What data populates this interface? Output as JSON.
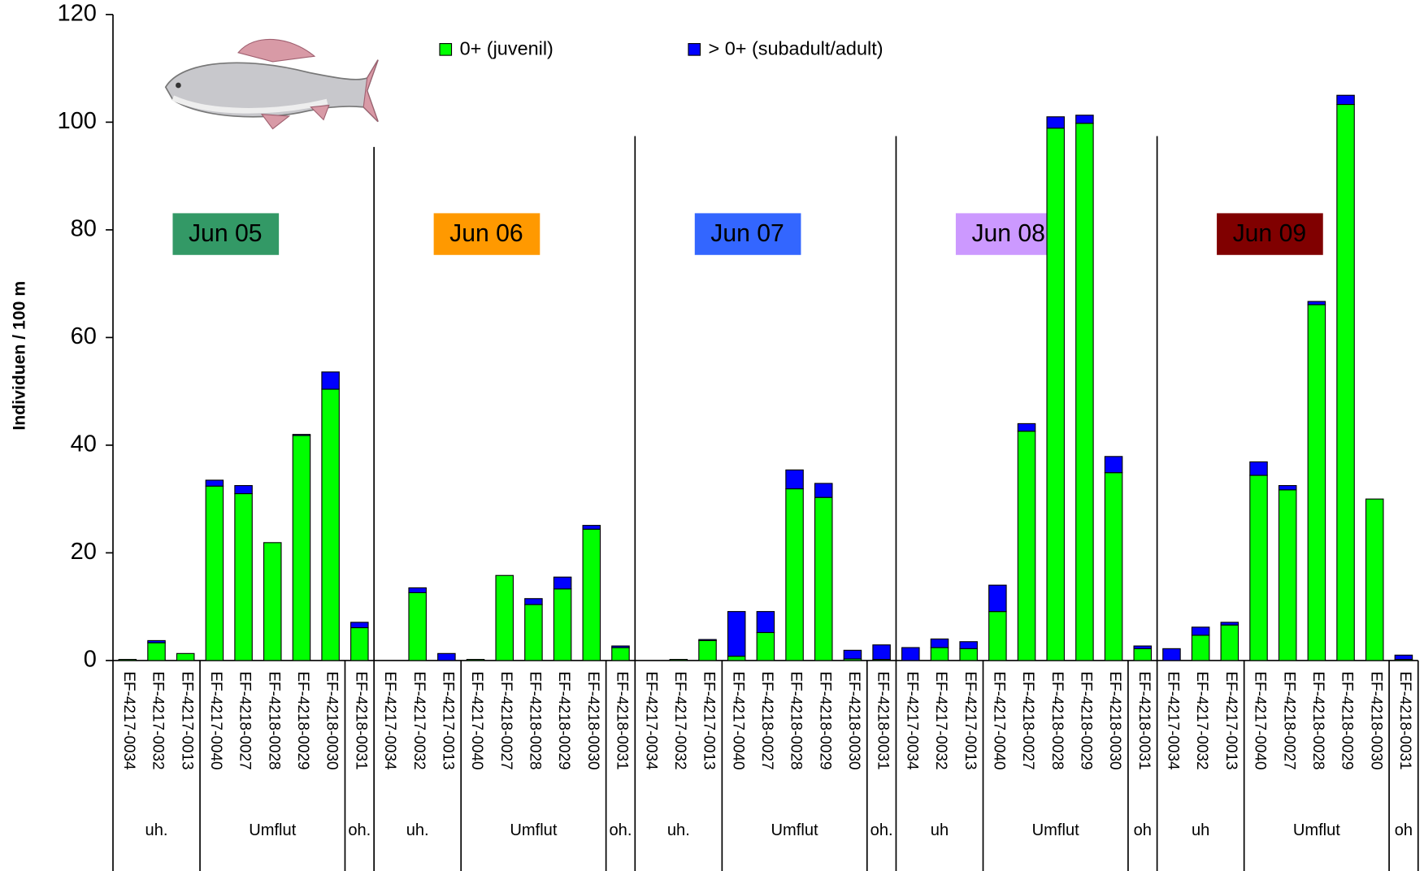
{
  "chart_data": {
    "type": "stacked-bar",
    "y_label": "Individuen / 100 m",
    "ylim": [
      0,
      120
    ],
    "yticks": [
      0,
      20,
      40,
      60,
      80,
      100,
      120
    ],
    "legend_position": "top",
    "panels": [
      {
        "label": "Jun 05",
        "color": "#339966",
        "groups": [
          {
            "label": "uh.",
            "categories": [
              "EF-4217-0034",
              "EF-4217-0032",
              "EF-4217-0013"
            ]
          },
          {
            "label": "Umflut",
            "categories": [
              "EF-4217-0040",
              "EF-4218-0027",
              "EF-4218-0028",
              "EF-4218-0029",
              "EF-4218-0030"
            ]
          },
          {
            "label": "oh.",
            "categories": [
              "EF-4218-0031"
            ]
          }
        ]
      },
      {
        "label": "Jun 06",
        "color": "#ff9900",
        "groups": [
          {
            "label": "uh.",
            "categories": [
              "EF-4217-0034",
              "EF-4217-0032",
              "EF-4217-0013"
            ]
          },
          {
            "label": "Umflut",
            "categories": [
              "EF-4217-0040",
              "EF-4218-0027",
              "EF-4218-0028",
              "EF-4218-0029",
              "EF-4218-0030"
            ]
          },
          {
            "label": "oh.",
            "categories": [
              "EF-4218-0031"
            ]
          }
        ]
      },
      {
        "label": "Jun 07",
        "color": "#3366ff",
        "groups": [
          {
            "label": "uh.",
            "categories": [
              "EF-4217-0034",
              "EF-4217-0032",
              "EF-4217-0013"
            ]
          },
          {
            "label": "Umflut",
            "categories": [
              "EF-4217-0040",
              "EF-4218-0027",
              "EF-4218-0028",
              "EF-4218-0029",
              "EF-4218-0030"
            ]
          },
          {
            "label": "oh.",
            "categories": [
              "EF-4218-0031"
            ]
          }
        ]
      },
      {
        "label": "Jun 08",
        "color": "#cc99ff",
        "groups": [
          {
            "label": "uh",
            "categories": [
              "EF-4217-0034",
              "EF-4217-0032",
              "EF-4217-0013"
            ]
          },
          {
            "label": "Umflut",
            "categories": [
              "EF-4217-0040",
              "EF-4218-0027",
              "EF-4218-0028",
              "EF-4218-0029",
              "EF-4218-0030"
            ]
          },
          {
            "label": "oh",
            "categories": [
              "EF-4218-0031"
            ]
          }
        ]
      },
      {
        "label": "Jun 09",
        "color": "#800000",
        "groups": [
          {
            "label": "uh",
            "categories": [
              "EF-4217-0034",
              "EF-4217-0032",
              "EF-4217-0013"
            ]
          },
          {
            "label": "Umflut",
            "categories": [
              "EF-4217-0040",
              "EF-4218-0027",
              "EF-4218-0028",
              "EF-4218-0029",
              "EF-4218-0030"
            ]
          },
          {
            "label": "oh",
            "categories": [
              "EF-4218-0031"
            ]
          }
        ]
      }
    ],
    "series": [
      {
        "name": "0+ (juvenil)",
        "color": "#00ff00",
        "values": [
          0.2,
          3.3,
          1.3,
          32.4,
          31,
          21.9,
          41.8,
          50.4,
          6.1,
          0,
          12.6,
          0,
          0.2,
          15.8,
          10.4,
          13.3,
          24.4,
          2.4,
          0,
          0.2,
          3.7,
          0.8,
          5.2,
          31.9,
          30.3,
          0.3,
          0.2,
          0,
          2.4,
          2.2,
          9.1,
          42.6,
          98.9,
          99.8,
          34.9,
          2.2,
          0,
          4.7,
          6.6,
          34.4,
          31.7,
          66.1,
          103.3,
          30,
          0.2
        ]
      },
      {
        "name": "> 0+ (subadult/adult)",
        "color": "#0000ff",
        "values": [
          0,
          0.4,
          0,
          1.1,
          1.5,
          0,
          0.2,
          3.2,
          1,
          0,
          0.9,
          1.3,
          0,
          0,
          1.1,
          2.2,
          0.7,
          0.3,
          0,
          0,
          0.2,
          8.3,
          3.9,
          3.5,
          2.6,
          1.6,
          2.7,
          2.4,
          1.6,
          1.3,
          4.9,
          1.4,
          2.1,
          1.5,
          3,
          0.5,
          2.2,
          1.5,
          0.5,
          2.5,
          0.8,
          0.6,
          1.7,
          0,
          0.8
        ]
      }
    ]
  }
}
